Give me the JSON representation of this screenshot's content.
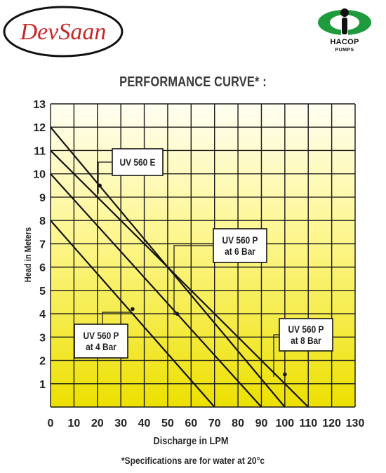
{
  "brand": {
    "devsaan_logo_text": "DevSaan",
    "hacop_name": "HACOP",
    "hacop_sub": "PUMPS",
    "accent_red": "#c62828",
    "hacop_green": "#1f9a3c"
  },
  "footnote": "*Specifications are for water at 20°c",
  "chart_data": {
    "type": "line",
    "title": "PERFORMANCE CURVE* :",
    "xlabel": "Discharge in LPM",
    "ylabel": "Head in Meters",
    "xlim": [
      0,
      130
    ],
    "ylim": [
      0,
      13
    ],
    "x_ticks": [
      0,
      10,
      20,
      30,
      40,
      50,
      60,
      70,
      80,
      90,
      100,
      110,
      120,
      130
    ],
    "y_ticks": [
      1,
      2,
      3,
      4,
      5,
      6,
      7,
      8,
      9,
      10,
      11,
      12,
      13
    ],
    "grid": true,
    "background": "vertical gradient from white at top to yellow at bottom",
    "series": [
      {
        "name": "UV 560 E",
        "x": [
          0,
          100
        ],
        "y": [
          12,
          0
        ]
      },
      {
        "name": "UV 560 P at 4 Bar",
        "x": [
          0,
          70
        ],
        "y": [
          8,
          0
        ]
      },
      {
        "name": "UV 560 P at 6 Bar",
        "x": [
          0,
          90
        ],
        "y": [
          10,
          0
        ]
      },
      {
        "name": "UV 560 P at 8 Bar",
        "x": [
          0,
          110
        ],
        "y": [
          11,
          0
        ]
      }
    ],
    "annotations": [
      {
        "text": [
          "UV 560 E"
        ],
        "point": [
          21,
          9.5
        ]
      },
      {
        "text": [
          "UV 560 P",
          "at 6 Bar"
        ],
        "point": [
          54,
          4
        ]
      },
      {
        "text": [
          "UV 560 P",
          "at 4 Bar"
        ],
        "point": [
          35,
          4.2
        ]
      },
      {
        "text": [
          "UV 560 P",
          "at 8 Bar"
        ],
        "point": [
          100,
          1.4
        ]
      }
    ]
  }
}
